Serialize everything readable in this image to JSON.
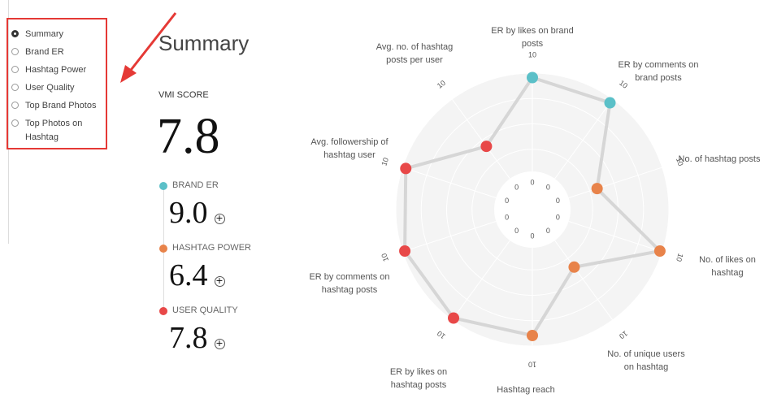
{
  "nav": {
    "items": [
      "Summary",
      "Brand ER",
      "Hashtag Power",
      "User Quality",
      "Top Brand Photos",
      "Top Photos on Hashtag"
    ],
    "selected": 0
  },
  "summary": {
    "title": "Summary",
    "score_label": "VMI SCORE",
    "score": "7.8",
    "metrics": [
      {
        "label": "BRAND ER",
        "value": "9.0",
        "color": "#5bc0c8"
      },
      {
        "label": "HASHTAG POWER",
        "value": "6.4",
        "color": "#e8834a"
      },
      {
        "label": "USER QUALITY",
        "value": "7.8",
        "color": "#e84848"
      }
    ]
  },
  "chart_data": {
    "type": "radar",
    "categories": [
      "ER by likes on brand posts",
      "ER by comments on brand posts",
      "No. of hashtag posts",
      "No. of likes on hashtag",
      "No. of unique users on hashtag",
      "Hashtag reach",
      "ER by likes on hashtag posts",
      "ER by comments on hashtag posts",
      "Avg. followership of hashtag user",
      "Avg. no. of hashtag posts per user"
    ],
    "values": [
      9.8,
      9.8,
      3.5,
      10,
      3.8,
      9.2,
      10,
      10,
      9.9,
      4.5
    ],
    "colors": [
      "#5bc0c8",
      "#5bc0c8",
      "#e8834a",
      "#e8834a",
      "#e8834a",
      "#e8834a",
      "#e84848",
      "#e84848",
      "#e84848",
      "#e84848"
    ],
    "rlim": [
      0,
      10
    ],
    "rticks": [
      0,
      10
    ]
  }
}
